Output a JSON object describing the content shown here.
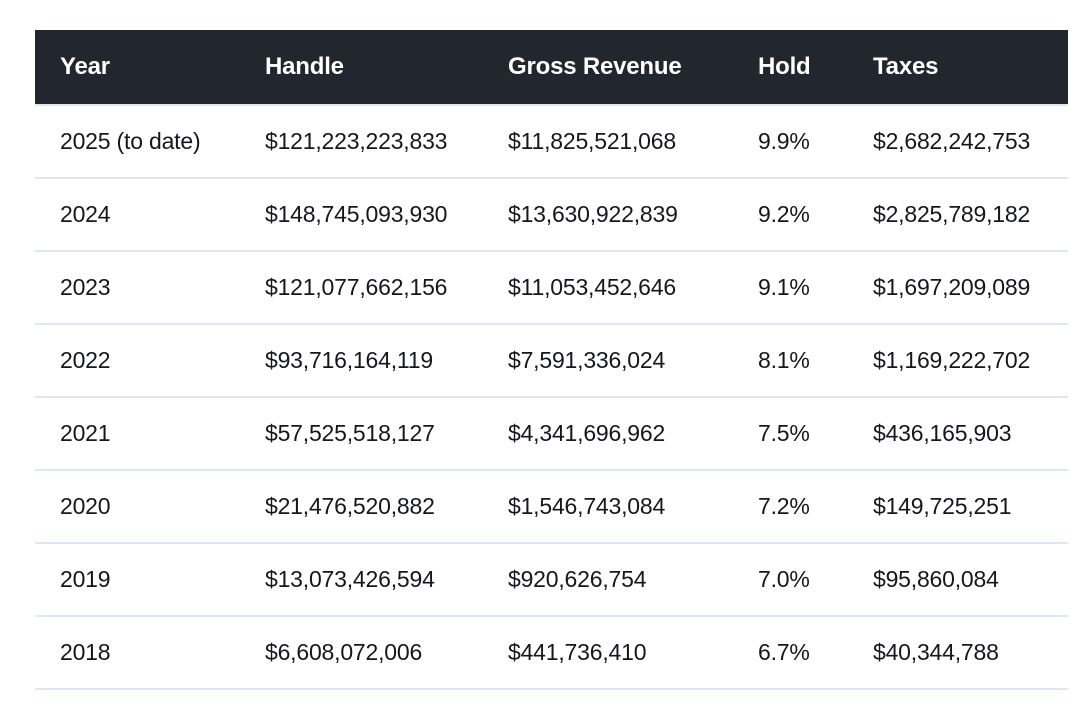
{
  "chart_data": {
    "type": "table",
    "columns": [
      "Year",
      "Handle",
      "Gross Revenue",
      "Hold",
      "Taxes"
    ],
    "rows": [
      {
        "year": "2025 (to date)",
        "handle": "$121,223,223,833",
        "gross_revenue": "$11,825,521,068",
        "hold": "9.9%",
        "taxes": "$2,682,242,753"
      },
      {
        "year": "2024",
        "handle": "$148,745,093,930",
        "gross_revenue": "$13,630,922,839",
        "hold": "9.2%",
        "taxes": "$2,825,789,182"
      },
      {
        "year": "2023",
        "handle": "$121,077,662,156",
        "gross_revenue": "$11,053,452,646",
        "hold": "9.1%",
        "taxes": "$1,697,209,089"
      },
      {
        "year": "2022",
        "handle": "$93,716,164,119",
        "gross_revenue": "$7,591,336,024",
        "hold": "8.1%",
        "taxes": "$1,169,222,702"
      },
      {
        "year": "2021",
        "handle": "$57,525,518,127",
        "gross_revenue": "$4,341,696,962",
        "hold": "7.5%",
        "taxes": "$436,165,903"
      },
      {
        "year": "2020",
        "handle": "$21,476,520,882",
        "gross_revenue": "$1,546,743,084",
        "hold": "7.2%",
        "taxes": "$149,725,251"
      },
      {
        "year": "2019",
        "handle": "$13,073,426,594",
        "gross_revenue": "$920,626,754",
        "hold": "7.0%",
        "taxes": "$95,860,084"
      },
      {
        "year": "2018",
        "handle": "$6,608,072,006",
        "gross_revenue": "$441,736,410",
        "hold": "6.7%",
        "taxes": "$40,344,788"
      }
    ]
  },
  "colors": {
    "header_bg": "#22262f",
    "header_text": "#ffffff",
    "body_text": "#15171c",
    "divider": "#dfe7f5",
    "background": "#ffffff"
  }
}
